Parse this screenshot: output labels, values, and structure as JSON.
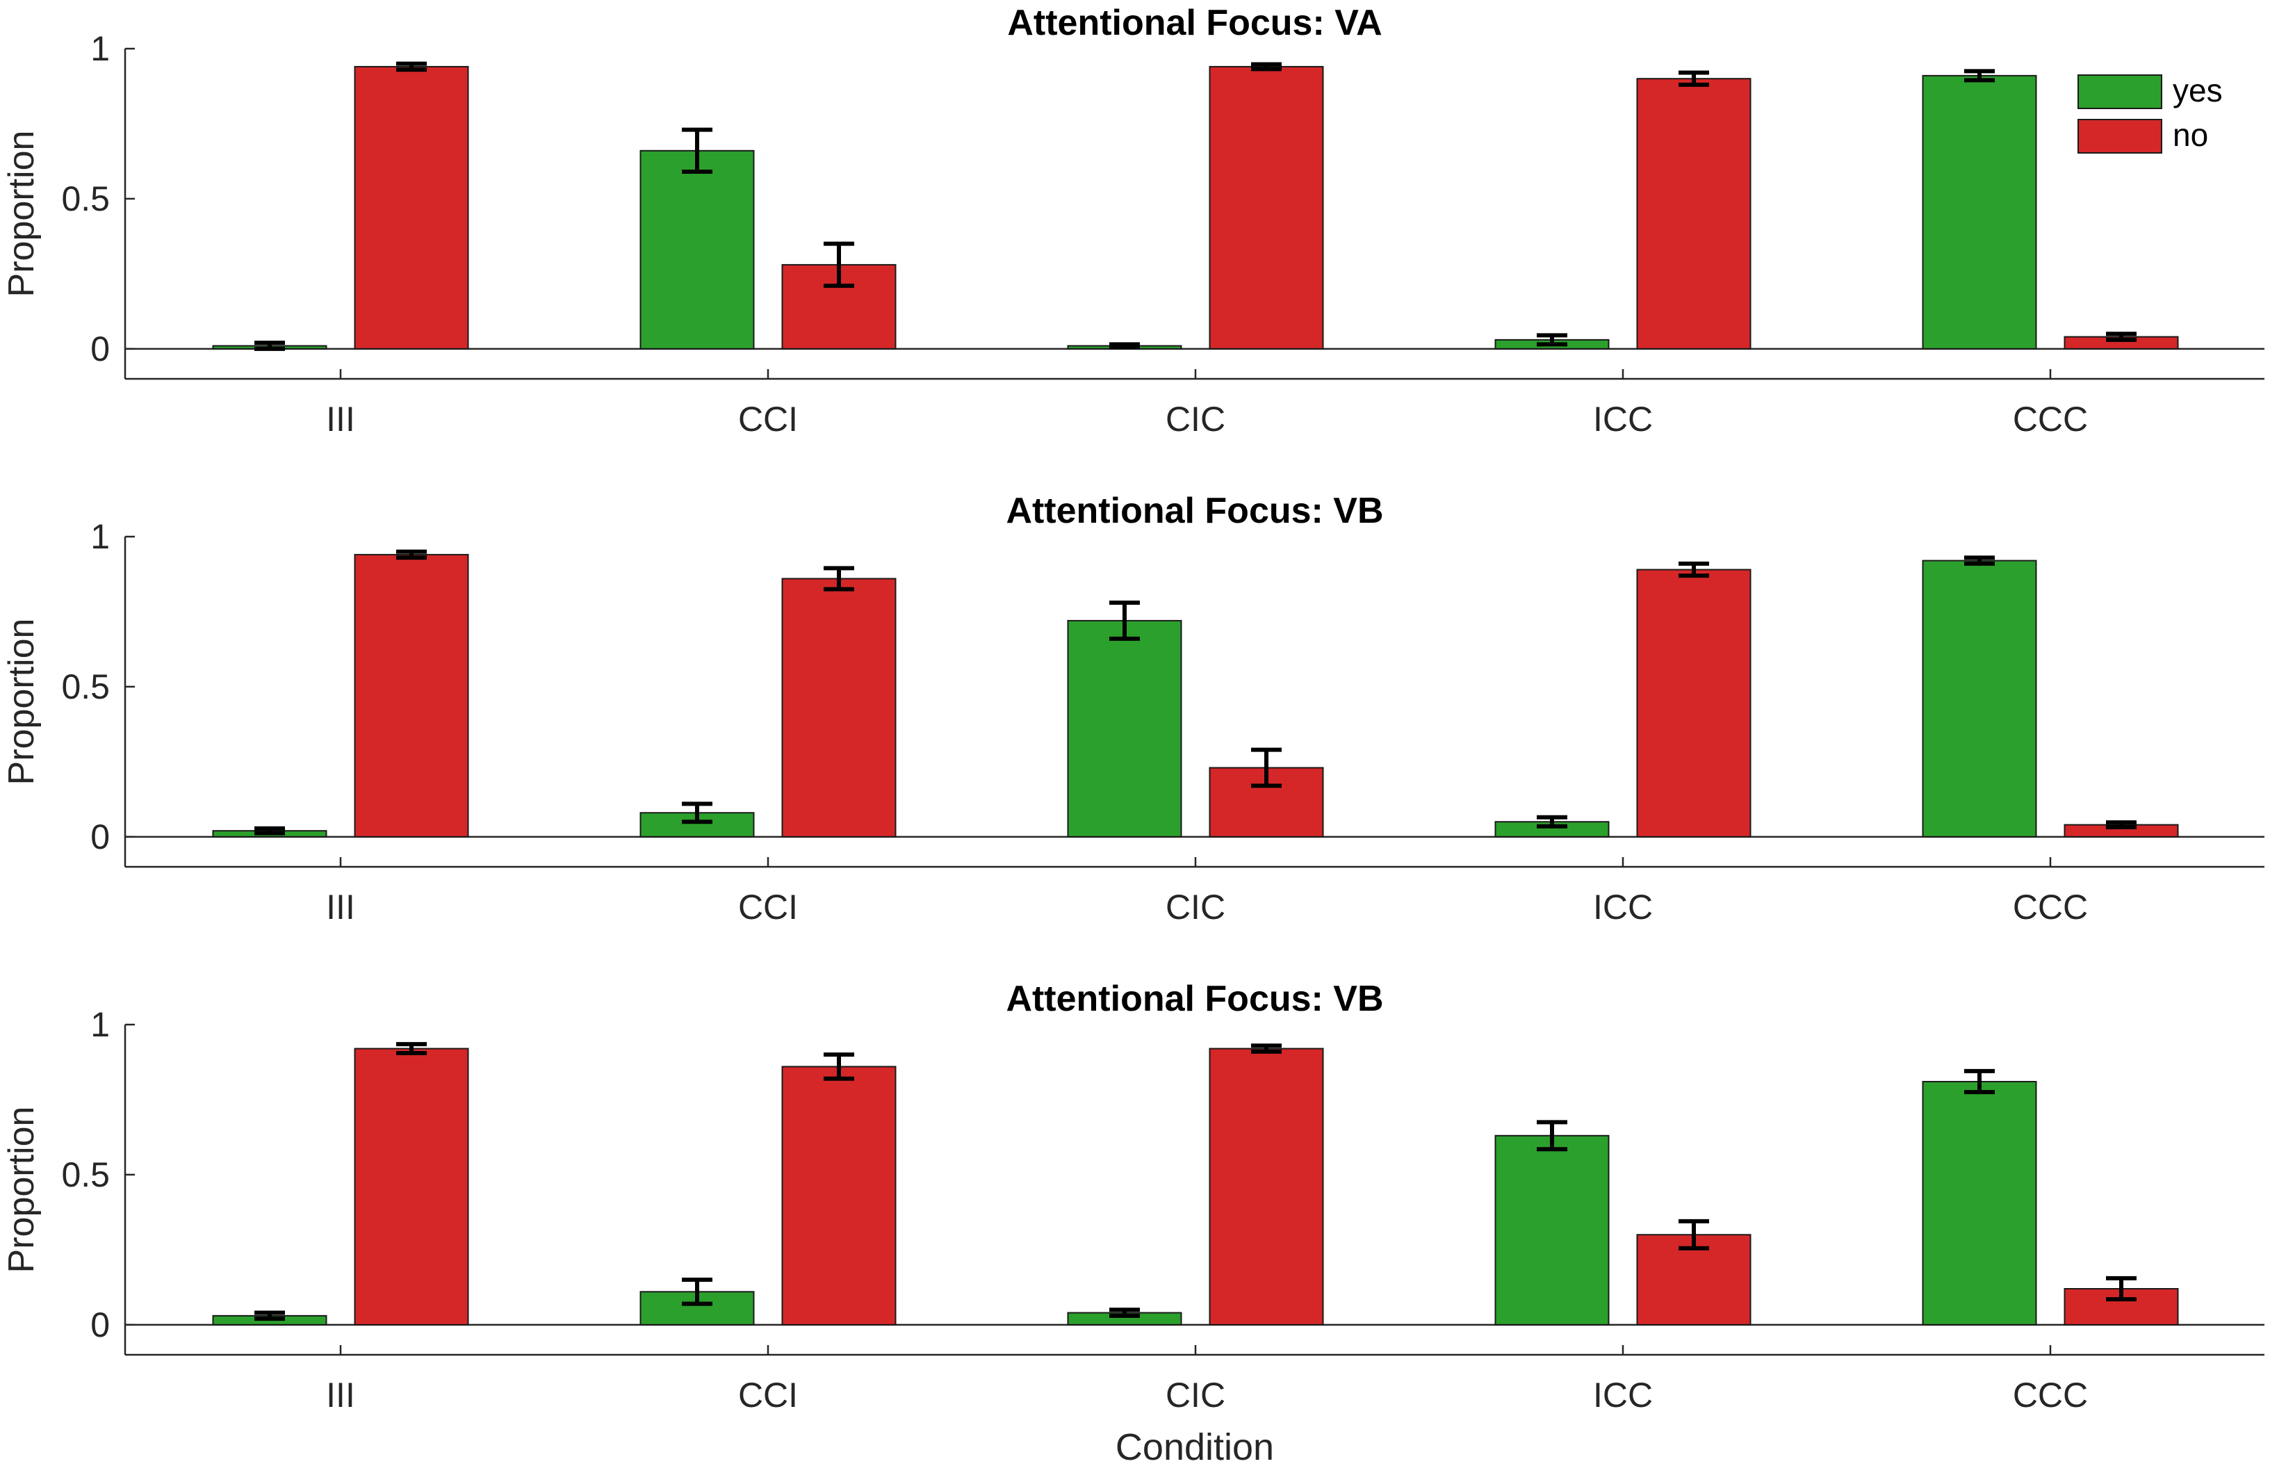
{
  "chart_data": [
    {
      "type": "bar",
      "title": "Attentional Focus: VA",
      "ylabel": "Proportion",
      "xlabel": "",
      "categories": [
        "III",
        "CCI",
        "CIC",
        "ICC",
        "CCC"
      ],
      "ylim": [
        -0.1,
        1
      ],
      "yticks": [
        0,
        0.5,
        1
      ],
      "ytick_labels": [
        "0",
        "0.5",
        "1"
      ],
      "series": [
        {
          "name": "yes",
          "color": "#2ca02c",
          "values": [
            0.01,
            0.66,
            0.01,
            0.03,
            0.91
          ],
          "errors": [
            0.01,
            0.07,
            0.005,
            0.015,
            0.015
          ]
        },
        {
          "name": "no",
          "color": "#d62728",
          "values": [
            0.94,
            0.28,
            0.94,
            0.9,
            0.04
          ],
          "errors": [
            0.01,
            0.07,
            0.008,
            0.02,
            0.01
          ]
        }
      ],
      "legend": {
        "show": true,
        "position": "top-right"
      }
    },
    {
      "type": "bar",
      "title": "Attentional Focus: VB",
      "ylabel": "Proportion",
      "xlabel": "",
      "categories": [
        "III",
        "CCI",
        "CIC",
        "ICC",
        "CCC"
      ],
      "ylim": [
        -0.1,
        1
      ],
      "yticks": [
        0,
        0.5,
        1
      ],
      "ytick_labels": [
        "0",
        "0.5",
        "1"
      ],
      "series": [
        {
          "name": "yes",
          "color": "#2ca02c",
          "values": [
            0.02,
            0.08,
            0.72,
            0.05,
            0.92
          ],
          "errors": [
            0.008,
            0.03,
            0.06,
            0.015,
            0.01
          ]
        },
        {
          "name": "no",
          "color": "#d62728",
          "values": [
            0.94,
            0.86,
            0.23,
            0.89,
            0.04
          ],
          "errors": [
            0.01,
            0.035,
            0.06,
            0.02,
            0.008
          ]
        }
      ],
      "legend": {
        "show": false
      }
    },
    {
      "type": "bar",
      "title": "Attentional Focus: VB",
      "ylabel": "Proportion",
      "xlabel": "Condition",
      "categories": [
        "III",
        "CCI",
        "CIC",
        "ICC",
        "CCC"
      ],
      "ylim": [
        -0.1,
        1
      ],
      "yticks": [
        0,
        0.5,
        1
      ],
      "ytick_labels": [
        "0",
        "0.5",
        "1"
      ],
      "series": [
        {
          "name": "yes",
          "color": "#2ca02c",
          "values": [
            0.03,
            0.11,
            0.04,
            0.63,
            0.81
          ],
          "errors": [
            0.01,
            0.04,
            0.01,
            0.045,
            0.035
          ]
        },
        {
          "name": "no",
          "color": "#d62728",
          "values": [
            0.92,
            0.86,
            0.92,
            0.3,
            0.12
          ],
          "errors": [
            0.015,
            0.04,
            0.01,
            0.045,
            0.035
          ]
        }
      ],
      "legend": {
        "show": false
      }
    }
  ]
}
